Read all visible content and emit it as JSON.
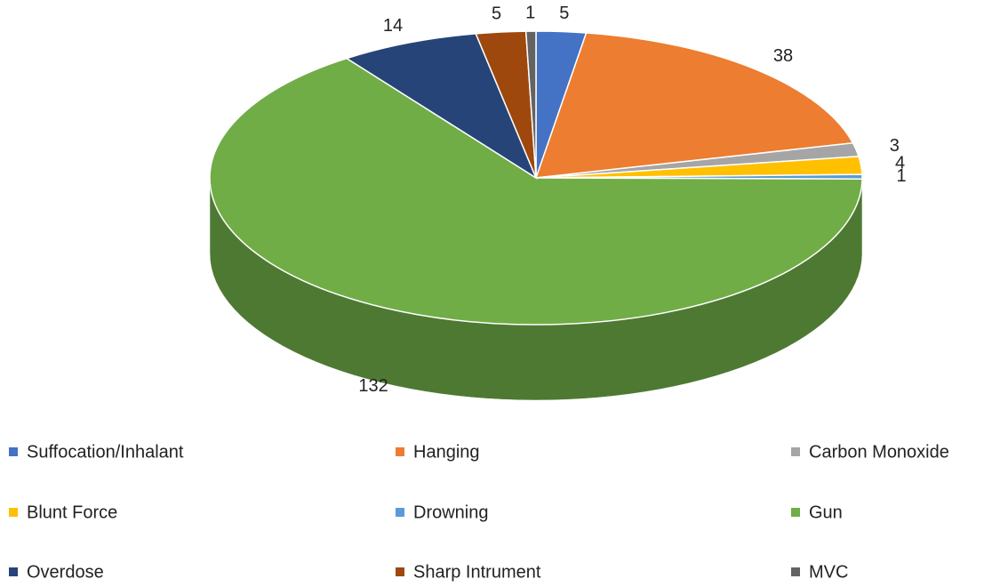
{
  "chart_data": {
    "type": "pie",
    "categories": [
      "Suffocation/Inhalant",
      "Hanging",
      "Carbon Monoxide",
      "Blunt Force",
      "Drowning",
      "Gun",
      "Overdose",
      "Sharp Intrument",
      "MVC"
    ],
    "values": [
      5,
      38,
      3,
      4,
      1,
      132,
      14,
      5,
      1
    ],
    "colors": [
      "#4472c4",
      "#ed7d31",
      "#a5a5a5",
      "#ffc000",
      "#5b9bd5",
      "#70ad47",
      "#264478",
      "#9e480e",
      "#636363"
    ]
  }
}
